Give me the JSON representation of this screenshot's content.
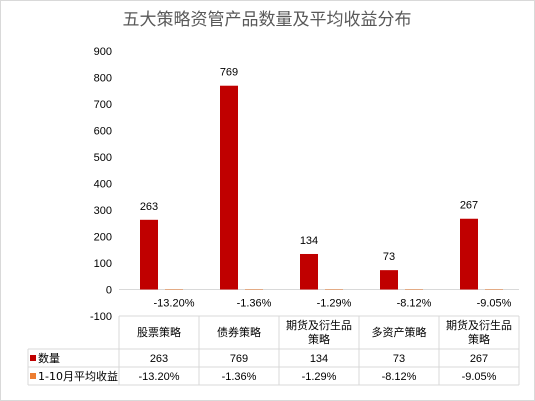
{
  "chart_data": {
    "type": "bar",
    "title": "五大策略资管产品数量及平均收益分布",
    "categories": [
      [
        "股票策略"
      ],
      [
        "债券策略"
      ],
      [
        "期货及衍生品",
        "策略"
      ],
      [
        "多资产策略"
      ],
      [
        "期货及衍生品",
        "策略"
      ]
    ],
    "series": [
      {
        "name": "数量",
        "values": [
          263,
          769,
          134,
          73,
          267
        ],
        "labels": [
          "263",
          "769",
          "134",
          "73",
          "267"
        ],
        "color": "#c00000"
      },
      {
        "name": "1-10月平均收益",
        "values": [
          -0.132,
          -0.0136,
          -0.0129,
          -0.0812,
          -0.0905
        ],
        "labels": [
          "-13.20%",
          "-1.36%",
          "-1.29%",
          "-8.12%",
          "-9.05%"
        ],
        "color": "#ed7d31"
      }
    ],
    "ylim": [
      -100,
      900
    ],
    "yticks": [
      900,
      800,
      700,
      600,
      500,
      400,
      300,
      200,
      100,
      0,
      -100
    ],
    "grid": false,
    "data_table": true,
    "xlabel": "",
    "ylabel": ""
  }
}
